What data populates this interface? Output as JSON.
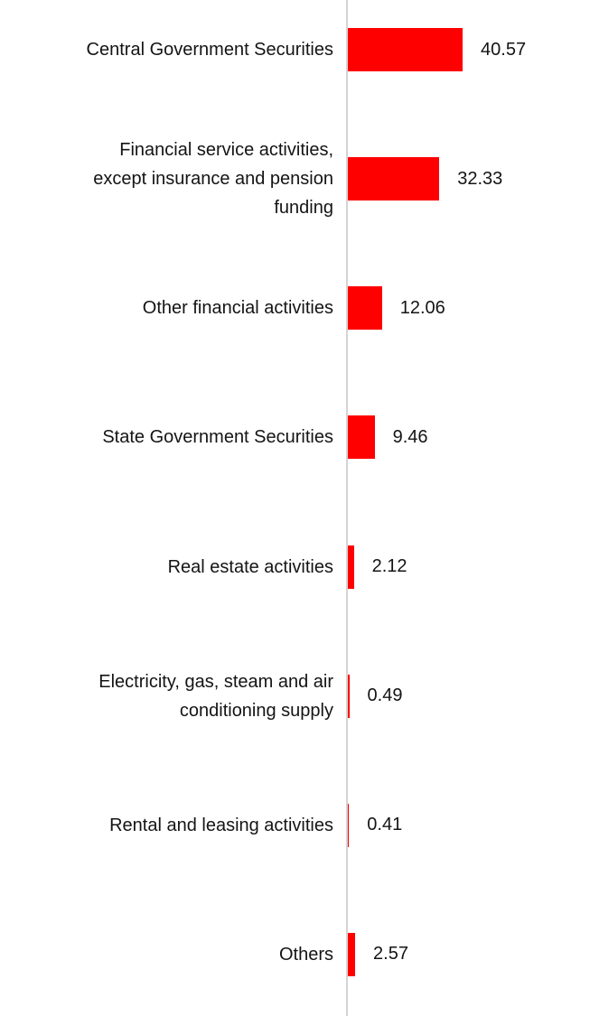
{
  "chart_data": {
    "type": "bar",
    "orientation": "horizontal",
    "title": "",
    "xlabel": "",
    "ylabel": "",
    "categories": [
      "Central Government Securities",
      "Financial service activities,\nexcept insurance and pension\nfunding",
      "Other financial activities",
      "State Government Securities",
      "Real estate activities",
      "Electricity, gas, steam and air\nconditioning supply",
      "Rental and leasing activities",
      "Others"
    ],
    "values": [
      40.57,
      32.33,
      12.06,
      9.46,
      2.12,
      0.49,
      0.41,
      2.57
    ],
    "value_labels": [
      "40.57",
      "32.33",
      "12.06",
      "9.46",
      "2.12",
      "0.49",
      "0.41",
      "2.57"
    ],
    "xlim": [
      0,
      85
    ],
    "grid": false,
    "legend": false,
    "bar_color": "#ff0000",
    "axis_line_color": "#d4d4d4",
    "text_color": "#141414",
    "background_color": "#ffffff"
  }
}
